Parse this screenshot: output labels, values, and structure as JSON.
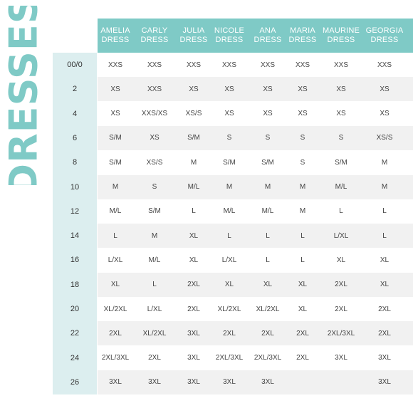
{
  "title": "DRESSES",
  "colors": {
    "accent": "#7fcac6",
    "size_column": "#dceeef",
    "row_shade": "#f1f1f1"
  },
  "columns": [
    {
      "line1": "AMELIA",
      "line2": "DRESS"
    },
    {
      "line1": "CARLY",
      "line2": "DRESS"
    },
    {
      "line1": "JULIA",
      "line2": "DRESS"
    },
    {
      "line1": "NICOLE",
      "line2": "DRESS"
    },
    {
      "line1": "ANA",
      "line2": "DRESS"
    },
    {
      "line1": "MARIA",
      "line2": "DRESS"
    },
    {
      "line1": "MAURINE",
      "line2": "DRESS"
    },
    {
      "line1": "GEORGIA",
      "line2": "DRESS"
    }
  ],
  "rows": [
    {
      "size": "00/0",
      "values": [
        "XXS",
        "XXS",
        "XXS",
        "XXS",
        "XXS",
        "XXS",
        "XXS",
        "XXS"
      ]
    },
    {
      "size": "2",
      "values": [
        "XS",
        "XXS",
        "XS",
        "XS",
        "XS",
        "XS",
        "XS",
        "XS"
      ]
    },
    {
      "size": "4",
      "values": [
        "XS",
        "XXS/XS",
        "XS/S",
        "XS",
        "XS",
        "XS",
        "XS",
        "XS"
      ]
    },
    {
      "size": "6",
      "values": [
        "S/M",
        "XS",
        "S/M",
        "S",
        "S",
        "S",
        "S",
        "XS/S"
      ]
    },
    {
      "size": "8",
      "values": [
        "S/M",
        "XS/S",
        "M",
        "S/M",
        "S/M",
        "S",
        "S/M",
        "M"
      ]
    },
    {
      "size": "10",
      "values": [
        "M",
        "S",
        "M/L",
        "M",
        "M",
        "M",
        "M/L",
        "M"
      ]
    },
    {
      "size": "12",
      "values": [
        "M/L",
        "S/M",
        "L",
        "M/L",
        "M/L",
        "M",
        "L",
        "L"
      ]
    },
    {
      "size": "14",
      "values": [
        "L",
        "M",
        "XL",
        "L",
        "L",
        "L",
        "L/XL",
        "L"
      ]
    },
    {
      "size": "16",
      "values": [
        "L/XL",
        "M/L",
        "XL",
        "L/XL",
        "L",
        "L",
        "XL",
        "XL"
      ]
    },
    {
      "size": "18",
      "values": [
        "XL",
        "L",
        "2XL",
        "XL",
        "XL",
        "XL",
        "2XL",
        "XL"
      ]
    },
    {
      "size": "20",
      "values": [
        "XL/2XL",
        "L/XL",
        "2XL",
        "XL/2XL",
        "XL/2XL",
        "XL",
        "2XL",
        "2XL"
      ]
    },
    {
      "size": "22",
      "values": [
        "2XL",
        "XL/2XL",
        "3XL",
        "2XL",
        "2XL",
        "2XL",
        "2XL/3XL",
        "2XL"
      ]
    },
    {
      "size": "24",
      "values": [
        "2XL/3XL",
        "2XL",
        "3XL",
        "2XL/3XL",
        "2XL/3XL",
        "2XL",
        "3XL",
        "3XL"
      ]
    },
    {
      "size": "26",
      "values": [
        "3XL",
        "3XL",
        "3XL",
        "3XL",
        "3XL",
        "",
        "",
        "3XL"
      ]
    }
  ]
}
